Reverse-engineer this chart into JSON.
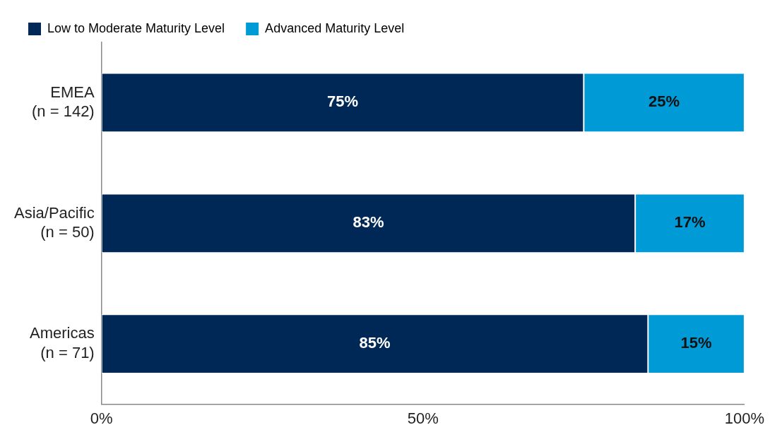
{
  "chart_data": {
    "type": "bar",
    "orientation": "horizontal",
    "stacked": true,
    "legend": "top left",
    "grid": false,
    "categories": [
      "EMEA\n(n = 142)",
      "Asia/Pacific\n(n = 50)",
      "Americas\n(n = 71)"
    ],
    "series": [
      {
        "name": "Low to Moderate Maturity Level",
        "color": "#002856",
        "values": [
          75,
          83,
          85
        ],
        "value_labels": [
          "75%",
          "83%",
          "85%"
        ]
      },
      {
        "name": "Advanced Maturity Level",
        "color": "#009ad7",
        "values": [
          25,
          17,
          15
        ],
        "value_labels": [
          "25%",
          "17%",
          "15%"
        ]
      }
    ],
    "xlim": [
      0,
      100
    ],
    "xticks": [
      {
        "value": 0,
        "label": "0%"
      },
      {
        "value": 50,
        "label": "50%"
      },
      {
        "value": 100,
        "label": "100%"
      }
    ]
  }
}
